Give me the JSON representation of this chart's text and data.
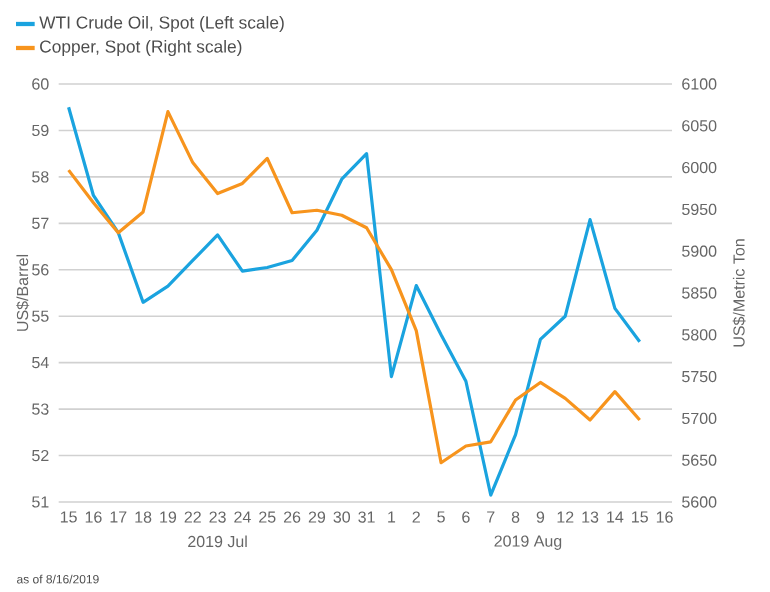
{
  "chart_data": {
    "type": "line",
    "categories": [
      "15",
      "16",
      "17",
      "18",
      "19",
      "22",
      "23",
      "24",
      "25",
      "26",
      "29",
      "30",
      "31",
      "1",
      "2",
      "5",
      "6",
      "7",
      "8",
      "9",
      "12",
      "13",
      "14",
      "15",
      "16"
    ],
    "ylabel": "US$/Barrel",
    "y2label": "US$/Metric Ton",
    "ylim": [
      51,
      60
    ],
    "yticks": [
      51,
      52,
      53,
      54,
      55,
      56,
      57,
      58,
      59,
      60
    ],
    "y2lim": [
      5600,
      6100
    ],
    "y2ticks": [
      5600,
      5650,
      5700,
      5750,
      5800,
      5850,
      5900,
      5950,
      6000,
      6050,
      6100
    ],
    "grid": "y",
    "legend": "top left",
    "series": [
      {
        "name": "WTI Crude Oil, Spot (Left scale)",
        "color": "#1aa3df",
        "values": [
          59.5,
          57.6,
          56.8,
          55.3,
          55.65,
          56.2,
          56.75,
          55.97,
          56.05,
          56.2,
          56.85,
          57.95,
          58.5,
          53.7,
          55.66,
          54.6,
          53.6,
          51.15,
          52.45,
          54.5,
          55.0,
          57.08,
          55.17,
          54.45,
          null
        ]
      },
      {
        "name": "Copper, Spot (Right scale)",
        "color": "#f7941d",
        "axis": "y2",
        "values": [
          5997,
          5958,
          5922,
          5947,
          6067,
          6006,
          5969,
          5981,
          6011,
          5946,
          5949,
          5943,
          5928,
          5878,
          5805,
          5647,
          5667,
          5672,
          5722,
          5743,
          5724,
          5698,
          5732,
          5698,
          null
        ]
      }
    ],
    "annotations": [
      "2019 Jul",
      "2019 Aug",
      "as of 8/16/2019"
    ]
  }
}
